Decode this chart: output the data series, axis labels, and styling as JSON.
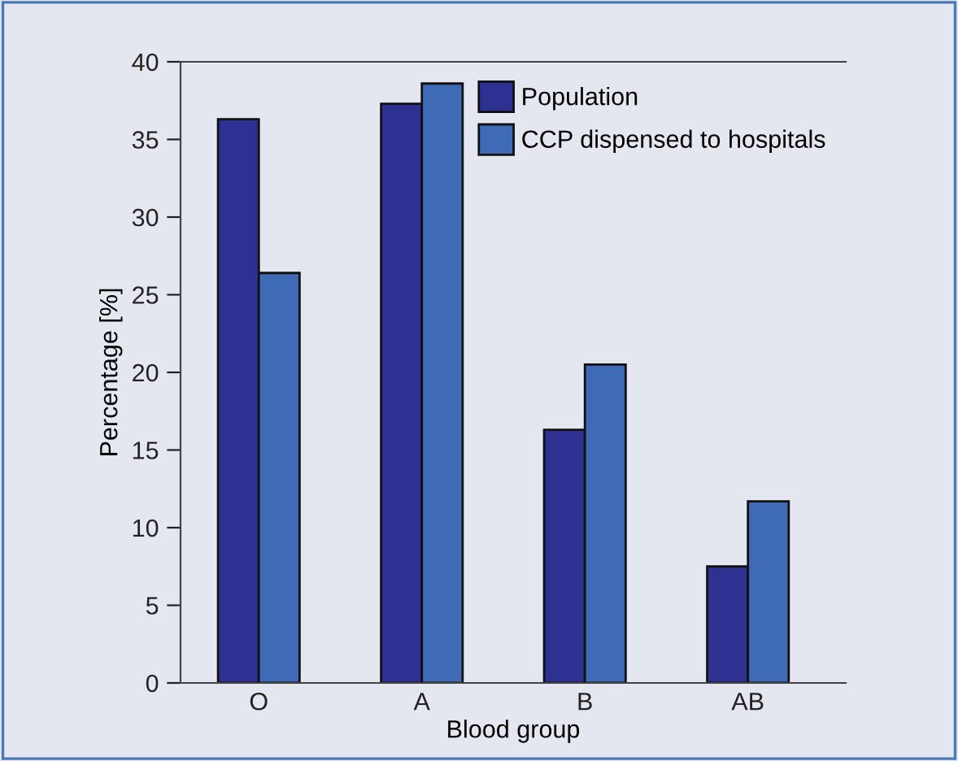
{
  "chart_data": {
    "type": "bar",
    "xlabel": "Blood group",
    "ylabel": "Percentage [%]",
    "categories": [
      "O",
      "A",
      "B",
      "AB"
    ],
    "series": [
      {
        "name": "Population",
        "color": "#2e3192",
        "values": [
          36.3,
          37.3,
          16.3,
          7.5
        ]
      },
      {
        "name": "CCP dispensed to hospitals",
        "color": "#3f6ab5",
        "values": [
          26.4,
          38.6,
          20.5,
          11.7
        ]
      }
    ],
    "ylim": [
      0,
      40
    ],
    "yticks": [
      0,
      5,
      10,
      15,
      20,
      25,
      30,
      35,
      40
    ],
    "grid": false,
    "legend": "top right"
  }
}
